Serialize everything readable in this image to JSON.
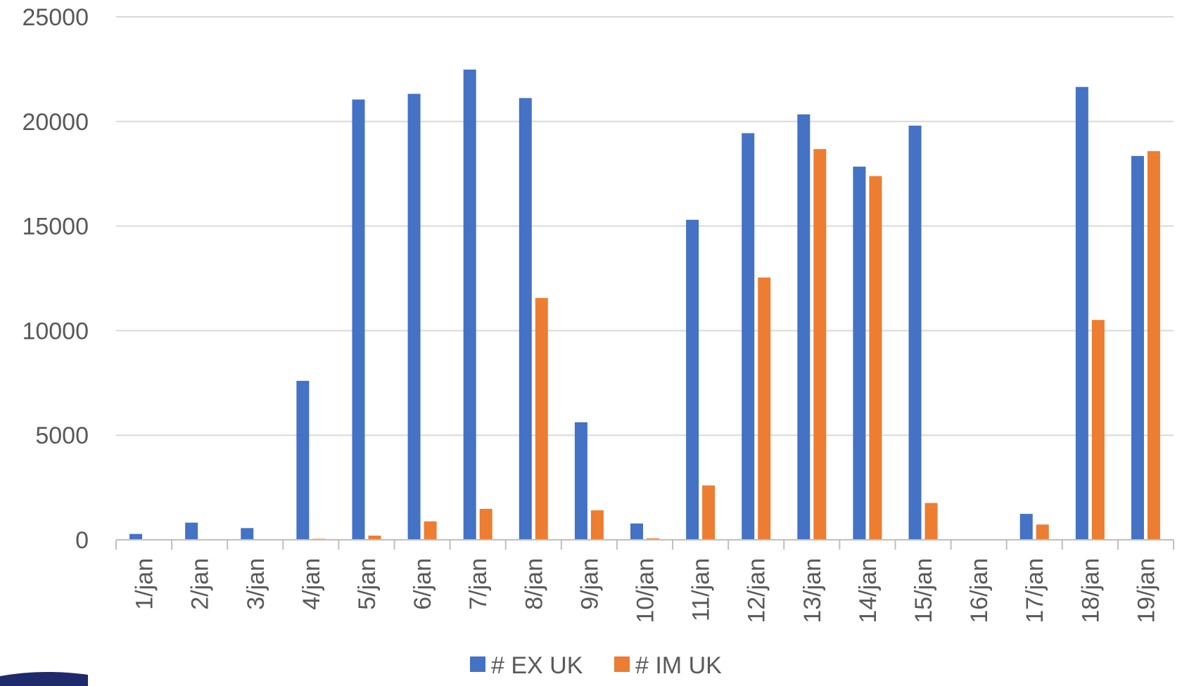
{
  "chart_data": {
    "type": "bar",
    "title": "",
    "xlabel": "",
    "ylabel": "",
    "categories": [
      "1/jan",
      "2/jan",
      "3/jan",
      "4/jan",
      "5/jan",
      "6/jan",
      "7/jan",
      "8/jan",
      "9/jan",
      "10/jan",
      "11/jan",
      "12/jan",
      "13/jan",
      "14/jan",
      "15/jan",
      "16/jan",
      "17/jan",
      "18/jan",
      "19/jan"
    ],
    "series": [
      {
        "name": "# EX UK",
        "color": "#4472C4",
        "values": [
          280,
          820,
          560,
          7600,
          21050,
          21320,
          22480,
          21120,
          5620,
          780,
          15300,
          19440,
          20340,
          17840,
          19800,
          0,
          1240,
          21650,
          18350
        ]
      },
      {
        "name": "# IM UK",
        "color": "#ED7D31",
        "values": [
          0,
          0,
          0,
          50,
          200,
          880,
          1480,
          11560,
          1410,
          70,
          2600,
          12540,
          18680,
          17390,
          1760,
          0,
          730,
          10510,
          18580
        ]
      }
    ],
    "ylim": [
      0,
      25000
    ],
    "yticks": [
      0,
      5000,
      10000,
      15000,
      20000,
      25000
    ],
    "grid": true,
    "legend_position": "bottom"
  }
}
